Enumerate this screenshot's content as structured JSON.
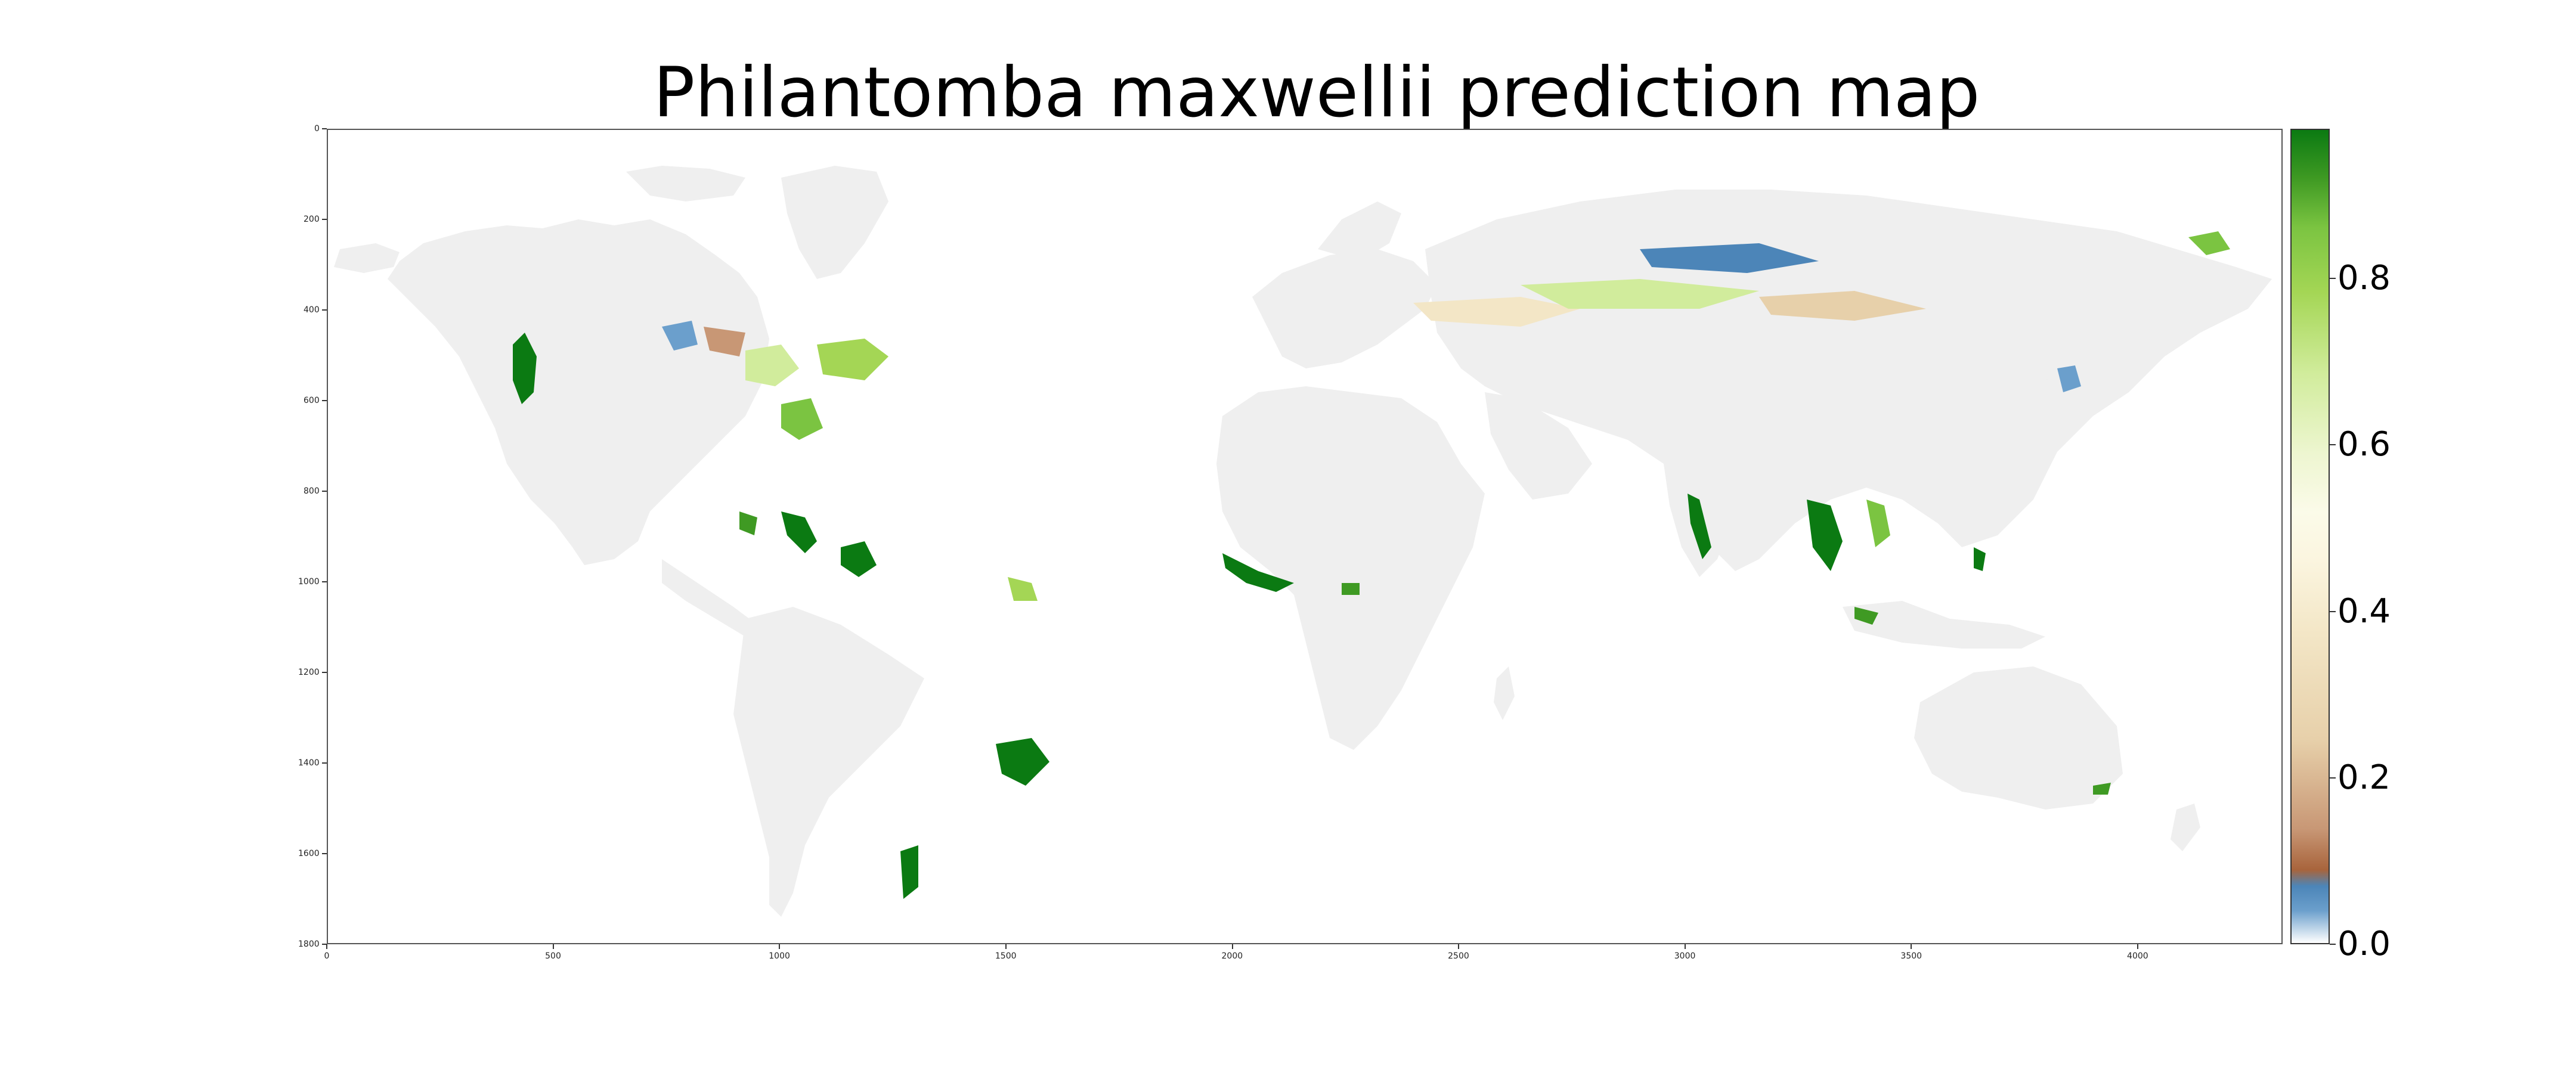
{
  "title": "Philantomba maxwellii prediction map",
  "x_axis": {
    "ticks": [
      "0",
      "500",
      "1000",
      "1500",
      "2000",
      "2500",
      "3000",
      "3500",
      "4000"
    ],
    "range": [
      0,
      4320
    ]
  },
  "y_axis": {
    "ticks": [
      "0",
      "200",
      "400",
      "600",
      "800",
      "1000",
      "1200",
      "1400",
      "1600",
      "1800"
    ],
    "range": [
      0,
      1800
    ]
  },
  "colorbar": {
    "ticks": [
      "0.0",
      "0.2",
      "0.4",
      "0.6",
      "0.8"
    ],
    "range": [
      0.0,
      0.98
    ],
    "colors": {
      "low": "#ffffff",
      "blue": "#4c85b8",
      "brown": "#a8643c",
      "tan": "#e7d0aa",
      "cream": "#fbf5df",
      "lightgreen": "#d1ec9c",
      "green": "#7bc441",
      "darkgreen": "#0b7a12"
    }
  },
  "land_color": "#efefef",
  "ocean_color": "#ffffff"
}
